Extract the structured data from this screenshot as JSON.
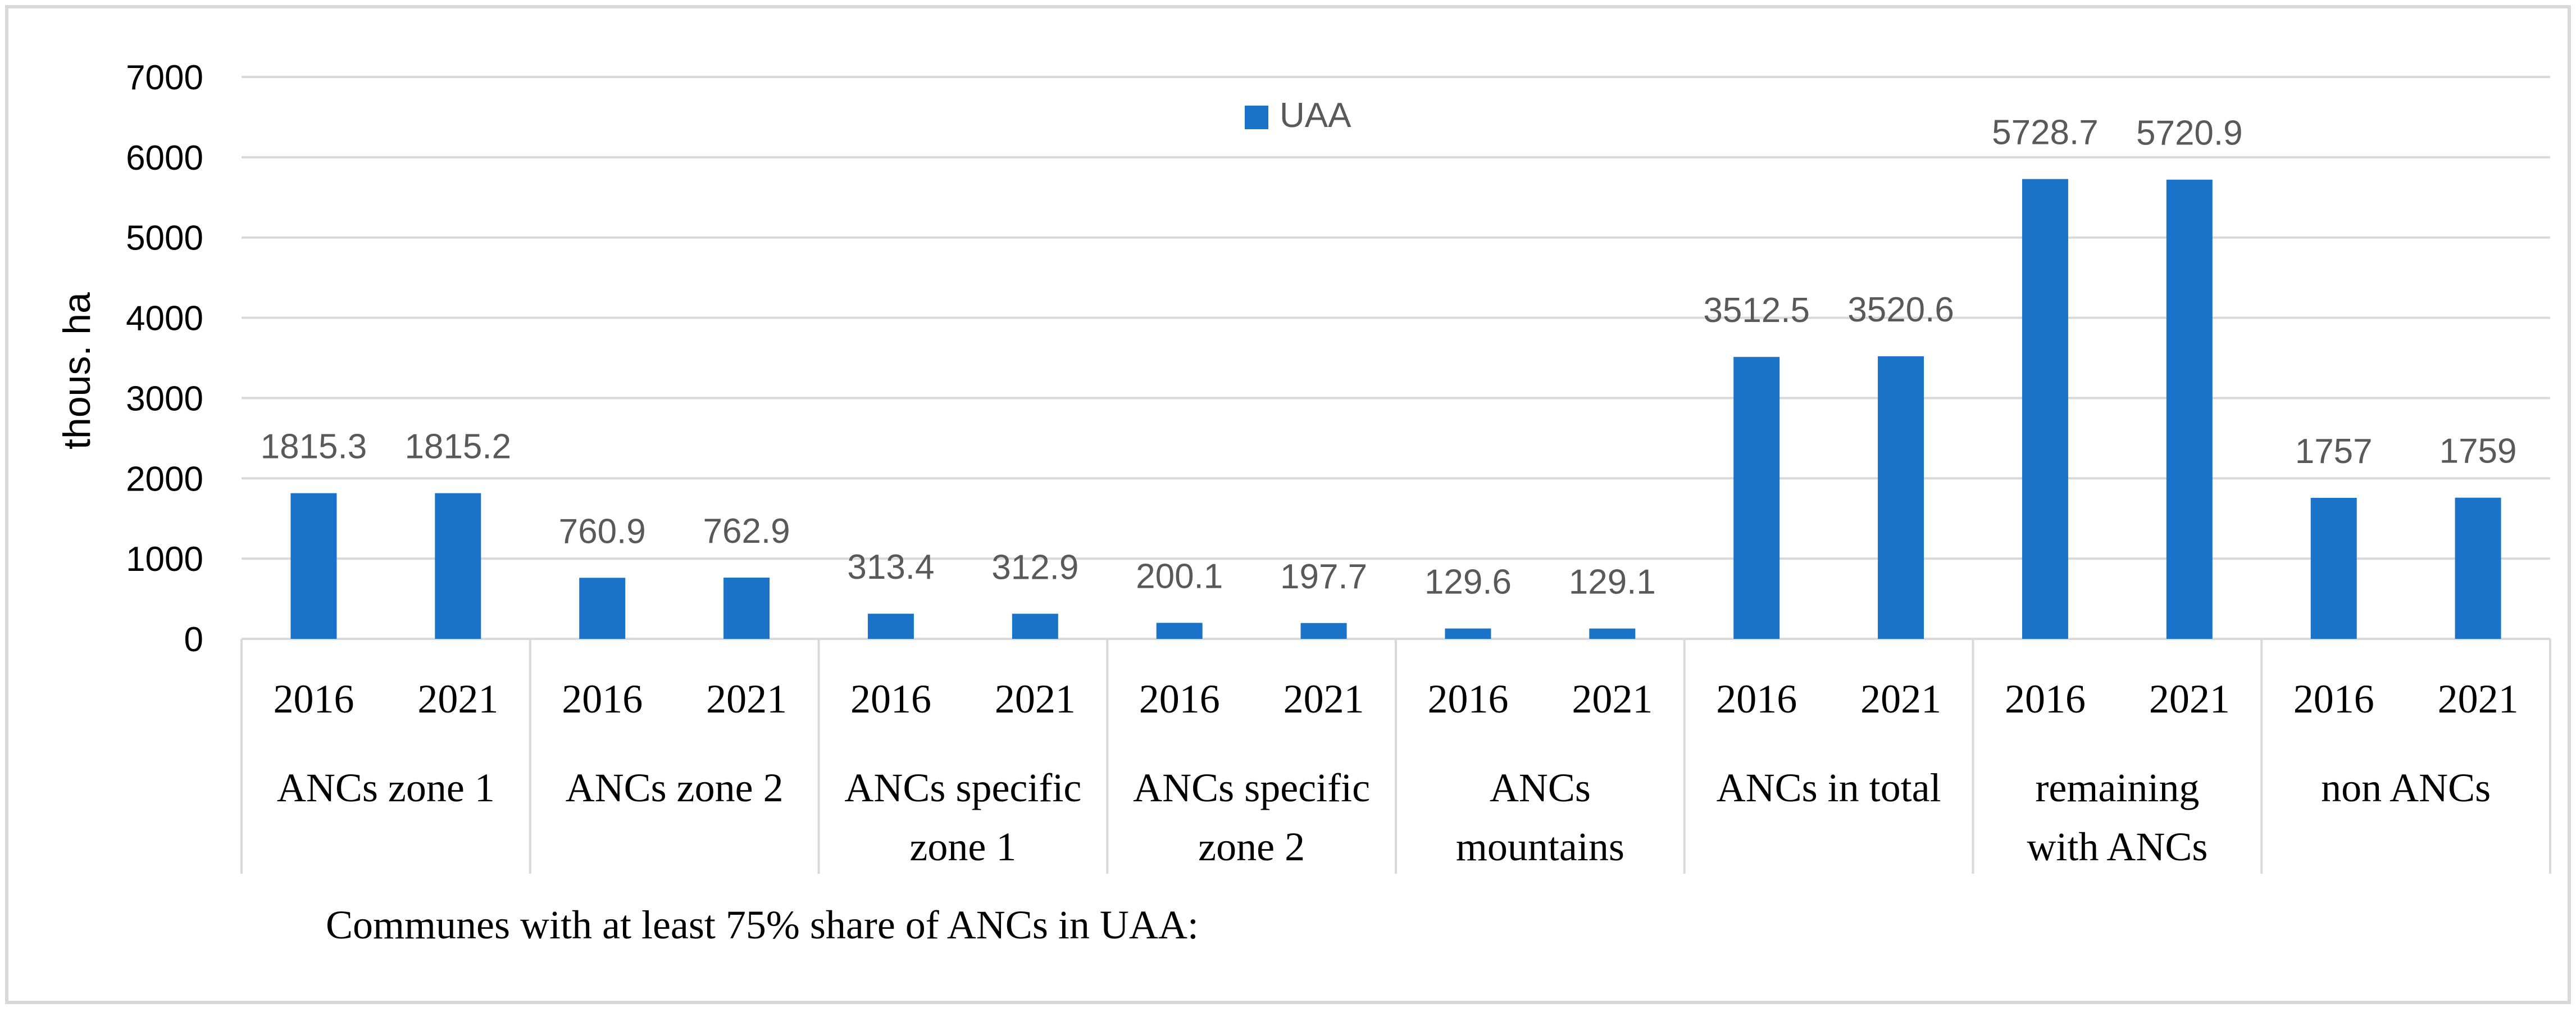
{
  "chart_data": {
    "type": "bar",
    "title": "",
    "ylabel": "thous. ha",
    "xlabel": "Communes with at least 75% share of ANCs in UAA:",
    "ylim": [
      0,
      7000
    ],
    "yticks": [
      0,
      1000,
      2000,
      3000,
      4000,
      5000,
      6000,
      7000
    ],
    "grid": true,
    "legend_position": "top-center",
    "groups": [
      {
        "label_lines": [
          "ANCs zone 1"
        ],
        "years": [
          "2016",
          "2021"
        ],
        "values": [
          1815.3,
          1815.2
        ],
        "value_labels": [
          "1815.3",
          "1815.2"
        ]
      },
      {
        "label_lines": [
          "ANCs zone 2"
        ],
        "years": [
          "2016",
          "2021"
        ],
        "values": [
          760.9,
          762.9
        ],
        "value_labels": [
          "760.9",
          "762.9"
        ]
      },
      {
        "label_lines": [
          "ANCs specific",
          "zone 1"
        ],
        "years": [
          "2016",
          "2021"
        ],
        "values": [
          313.4,
          312.9
        ],
        "value_labels": [
          "313.4",
          "312.9"
        ]
      },
      {
        "label_lines": [
          "ANCs specific",
          "zone 2"
        ],
        "years": [
          "2016",
          "2021"
        ],
        "values": [
          200.1,
          197.7
        ],
        "value_labels": [
          "200.1",
          "197.7"
        ]
      },
      {
        "label_lines": [
          "ANCs",
          "mountains"
        ],
        "years": [
          "2016",
          "2021"
        ],
        "values": [
          129.6,
          129.1
        ],
        "value_labels": [
          "129.6",
          "129.1"
        ]
      },
      {
        "label_lines": [
          "ANCs in total"
        ],
        "years": [
          "2016",
          "2021"
        ],
        "values": [
          3512.5,
          3520.6
        ],
        "value_labels": [
          "3512.5",
          "3520.6"
        ]
      },
      {
        "label_lines": [
          "remaining",
          "with ANCs"
        ],
        "years": [
          "2016",
          "2021"
        ],
        "values": [
          5728.7,
          5720.9
        ],
        "value_labels": [
          "5728.7",
          "5720.9"
        ]
      },
      {
        "label_lines": [
          "non ANCs"
        ],
        "years": [
          "2016",
          "2021"
        ],
        "values": [
          1757,
          1759
        ],
        "value_labels": [
          "1757",
          "1759"
        ]
      }
    ],
    "series": [
      {
        "name": "UAA",
        "color": "#1a73c8"
      }
    ],
    "colors": {
      "bar": "#1a73c8",
      "grid": "#d9d9d9",
      "axis_text": "#000000",
      "label_text": "#595959",
      "separator": "#d9d9d9"
    }
  }
}
